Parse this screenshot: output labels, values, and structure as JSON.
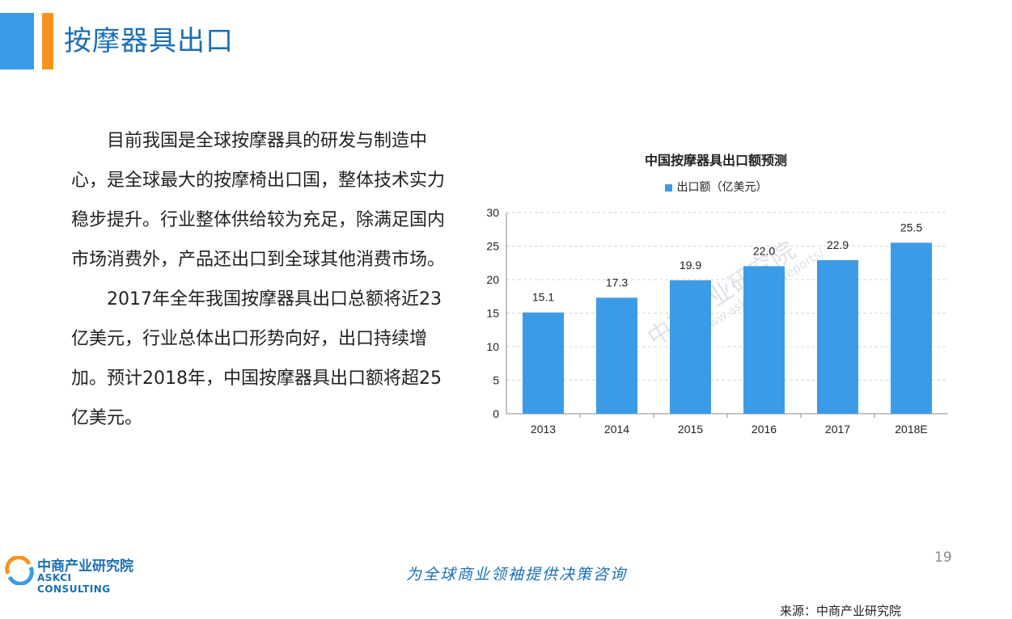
{
  "slide": {
    "title": "按摩器具出口",
    "paragraphs": [
      "目前我国是全球按摩器具的研发与制造中心，是全球最大的按摩椅出口国，整体技术实力稳步提升。行业整体供给较为充足，除满足国内市场消费外，产品还出口到全球其他消费市场。",
      "2017年全年我国按摩器具出口总额将近23亿美元，行业总体出口形势向好，出口持续增加。预计2018年，中国按摩器具出口额将超25亿美元。"
    ],
    "source": "来源：中商产业研究院",
    "page_number": "19",
    "slogan": "为全球商业领袖提供决策咨询",
    "logo": {
      "cn": "中商产业研究院",
      "en": "ASKCI CONSULTING"
    },
    "watermark": {
      "cn": "中商产业研究院",
      "url": "www.askci.com/reports/"
    }
  },
  "colors": {
    "accent_blue": "#3b9be7",
    "accent_orange": "#f7941d",
    "title_blue": "#1a6fb5"
  },
  "chart_data": {
    "type": "bar",
    "title": "中国按摩器具出口额预测",
    "categories": [
      "2013",
      "2014",
      "2015",
      "2016",
      "2017",
      "2018E"
    ],
    "series": [
      {
        "name": "出口额（亿美元）",
        "values": [
          15.1,
          17.3,
          19.9,
          22.0,
          22.9,
          25.5
        ]
      }
    ],
    "data_labels": [
      "15.1",
      "17.3",
      "19.9",
      "22.0",
      "22.9",
      "25.5"
    ],
    "ylim": [
      0,
      30
    ],
    "yticks": [
      0,
      5,
      10,
      15,
      20,
      25,
      30
    ],
    "grid": true,
    "legend_position": "top",
    "xlabel": "",
    "ylabel": ""
  }
}
